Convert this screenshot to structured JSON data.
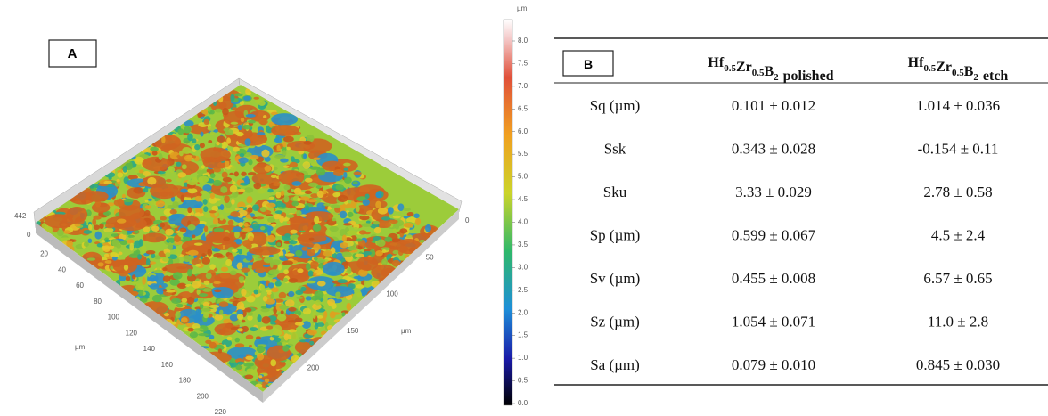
{
  "panel_a": {
    "label": "A",
    "z_axis": {
      "ticks": [
        "442",
        "0"
      ]
    },
    "x_axis": {
      "ticks": [
        "20",
        "40",
        "60",
        "80",
        "100",
        "120",
        "140",
        "160",
        "180",
        "200",
        "220"
      ],
      "unit": "µm"
    },
    "y_axis": {
      "ticks": [
        "0",
        "50",
        "100",
        "150",
        "200"
      ],
      "unit": "µm"
    },
    "colorbar": {
      "unit": "µm",
      "ticks": [
        "8.0",
        "7.5",
        "7.0",
        "6.5",
        "6.0",
        "5.5",
        "5.0",
        "4.5",
        "4.0",
        "3.5",
        "3.0",
        "2.5",
        "2.0",
        "1.5",
        "1.0",
        "0.5",
        "0.0"
      ]
    }
  },
  "panel_b": {
    "label": "B",
    "headers": [
      {
        "formula": [
          {
            "el": "Hf",
            "n": "0.5"
          },
          {
            "el": "Zr",
            "n": "0.5"
          },
          {
            "el": "B",
            "n": "2"
          }
        ],
        "suffix": "polished"
      },
      {
        "formula": [
          {
            "el": "Hf",
            "n": "0.5"
          },
          {
            "el": "Zr",
            "n": "0.5"
          },
          {
            "el": "B",
            "n": "2"
          }
        ],
        "suffix": "etch"
      }
    ],
    "rows": [
      [
        "Sq (µm)",
        "0.101 ± 0.012",
        "1.014 ± 0.036"
      ],
      [
        "Ssk",
        "0.343 ± 0.028",
        "-0.154 ± 0.11"
      ],
      [
        "Sku",
        "3.33 ± 0.029",
        "2.78 ± 0.58"
      ],
      [
        "Sp (µm)",
        "0.599 ± 0.067",
        "4.5 ± 2.4"
      ],
      [
        "Sv (µm)",
        "0.455 ± 0.008",
        "6.57 ± 0.65"
      ],
      [
        "Sz (µm)",
        "1.054 ± 0.071",
        "11.0 ± 2.8"
      ],
      [
        "Sa (µm)",
        "0.079 ± 0.010",
        "0.845 ± 0.030"
      ]
    ]
  }
}
